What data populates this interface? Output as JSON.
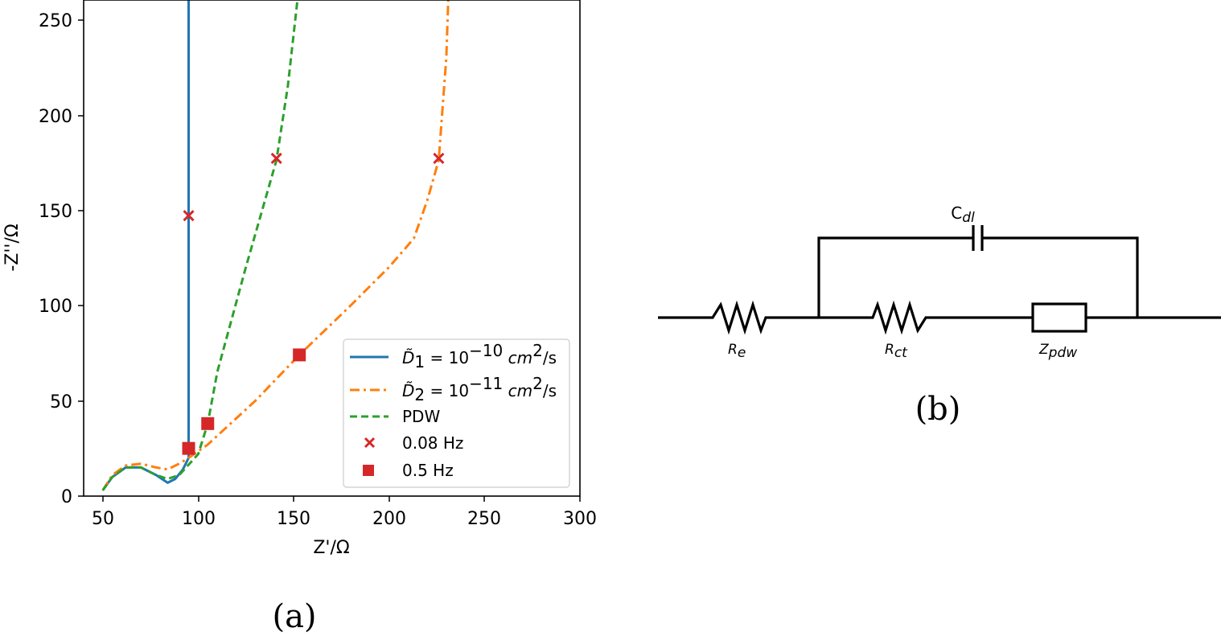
{
  "chart_data": [
    {
      "panel": "(a)",
      "type": "line",
      "title": "",
      "xlabel": "Z'/Ω",
      "ylabel": "-Z''/Ω",
      "xlim": [
        40,
        300
      ],
      "ylim": [
        0,
        260
      ],
      "xticks": [
        50,
        100,
        150,
        200,
        250,
        300
      ],
      "yticks": [
        0,
        50,
        100,
        150,
        200,
        250
      ],
      "grid": false,
      "legend_position": "lower right",
      "series": [
        {
          "name": "D̃1 = 10^-10 cm²/s",
          "color": "#1f77b4",
          "style": "solid",
          "x": [
            50,
            55,
            62,
            70,
            78,
            84,
            88,
            92,
            95,
            95,
            95,
            95
          ],
          "y": [
            3,
            10,
            15,
            15,
            11,
            7,
            9,
            14,
            20,
            50,
            150,
            260
          ]
        },
        {
          "name": "D̃2 = 10^-11 cm²/s",
          "color": "#ff7f0e",
          "style": "dashdot",
          "x": [
            50,
            55,
            62,
            70,
            78,
            84,
            90,
            95,
            105,
            130,
            153,
            180,
            200,
            213,
            220,
            226,
            230,
            231
          ],
          "y": [
            3,
            11,
            16,
            17,
            15,
            14,
            17,
            20,
            27,
            50,
            74,
            100,
            120,
            135,
            155,
            176,
            230,
            260
          ]
        },
        {
          "name": "PDW",
          "color": "#2ca02c",
          "style": "dashed",
          "x": [
            50,
            55,
            62,
            70,
            78,
            84,
            90,
            100,
            105,
            110,
            125,
            141,
            147,
            152
          ],
          "y": [
            3,
            10,
            15,
            15,
            11,
            9,
            11,
            22,
            38,
            65,
            120,
            176,
            215,
            260
          ]
        }
      ],
      "markers": [
        {
          "name": "0.08 Hz",
          "shape": "x",
          "color": "#d62728",
          "points": [
            [
              95,
              147
            ],
            [
              141,
              177
            ],
            [
              226,
              177
            ]
          ]
        },
        {
          "name": "0.5 Hz",
          "shape": "square",
          "color": "#d62728",
          "points": [
            [
              95,
              25
            ],
            [
              105,
              38
            ],
            [
              153,
              74
            ]
          ]
        }
      ]
    }
  ],
  "panel_a": {
    "caption": "(a)",
    "xlabel": "Z'/Ω",
    "ylabel": "-Z''/Ω",
    "xticks": [
      "50",
      "100",
      "150",
      "200",
      "250",
      "300"
    ],
    "yticks": [
      "0",
      "50",
      "100",
      "150",
      "200",
      "250"
    ],
    "legend": {
      "d1_sym": "D̃",
      "d1_sub": "1",
      "d1_eq": " = 10",
      "d1_exp": "−10",
      "d1_unit": " cm",
      "d1_unit_exp": "2",
      "d1_tail": "/s",
      "d2_sym": "D̃",
      "d2_sub": "2",
      "d2_eq": " = 10",
      "d2_exp": "−11",
      "d2_unit": " cm",
      "d2_unit_exp": "2",
      "d2_tail": "/s",
      "pdw": "PDW",
      "m1": "0.08 Hz",
      "m2": "0.5 Hz"
    }
  },
  "panel_b": {
    "caption": "(b)",
    "cdl": "C",
    "cdl_sub": "dl",
    "re": "R",
    "re_sub": "e",
    "rct": "R",
    "rct_sub": "ct",
    "zpdw": "Z",
    "zpdw_sub": "pdw"
  },
  "colors": {
    "blue": "#1f77b4",
    "orange": "#ff7f0e",
    "green": "#2ca02c",
    "red": "#d62728"
  }
}
